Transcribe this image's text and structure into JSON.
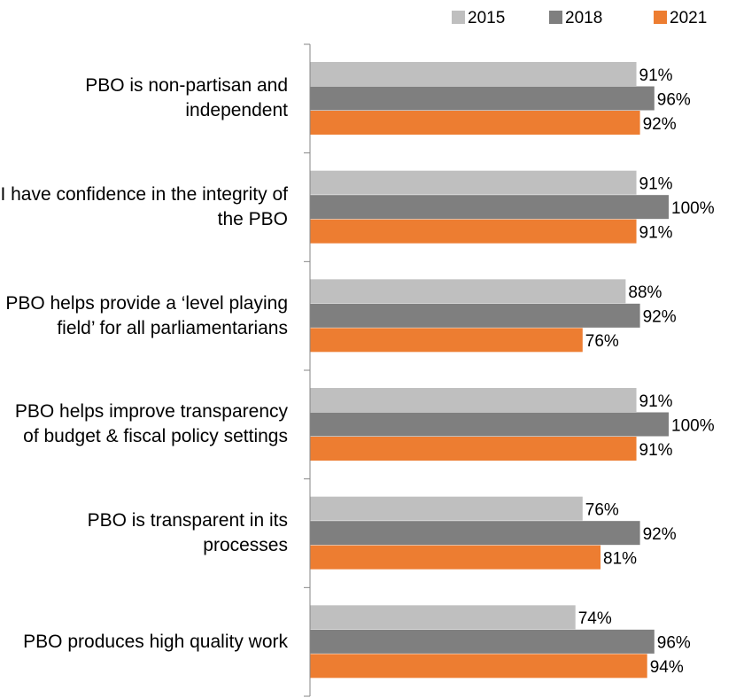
{
  "chart_data": {
    "type": "bar",
    "orientation": "horizontal",
    "categories": [
      "PBO is non-partisan and independent",
      "I have confidence in the integrity of the PBO",
      "PBO helps provide a ‘level playing field’ for all parliamentarians",
      "PBO helps improve transparency of budget & fiscal policy settings",
      "PBO is transparent in its processes",
      "PBO produces high quality work"
    ],
    "series": [
      {
        "name": "2015",
        "color": "#bfbfbf",
        "values": [
          91,
          91,
          88,
          91,
          76,
          74
        ],
        "value_labels": [
          "91%",
          "91%",
          "88%",
          "91%",
          "76%",
          "74%"
        ]
      },
      {
        "name": "2018",
        "color": "#7f7f7f",
        "values": [
          96,
          100,
          92,
          100,
          92,
          96
        ],
        "value_labels": [
          "96%",
          "100%",
          "92%",
          "100%",
          "92%",
          "96%"
        ]
      },
      {
        "name": "2021",
        "color": "#ed7d31",
        "values": [
          92,
          91,
          76,
          91,
          81,
          94
        ],
        "value_labels": [
          "92%",
          "91%",
          "76%",
          "91%",
          "81%",
          "94%"
        ]
      }
    ],
    "xlim": [
      0,
      100
    ],
    "legend": "top-right"
  }
}
